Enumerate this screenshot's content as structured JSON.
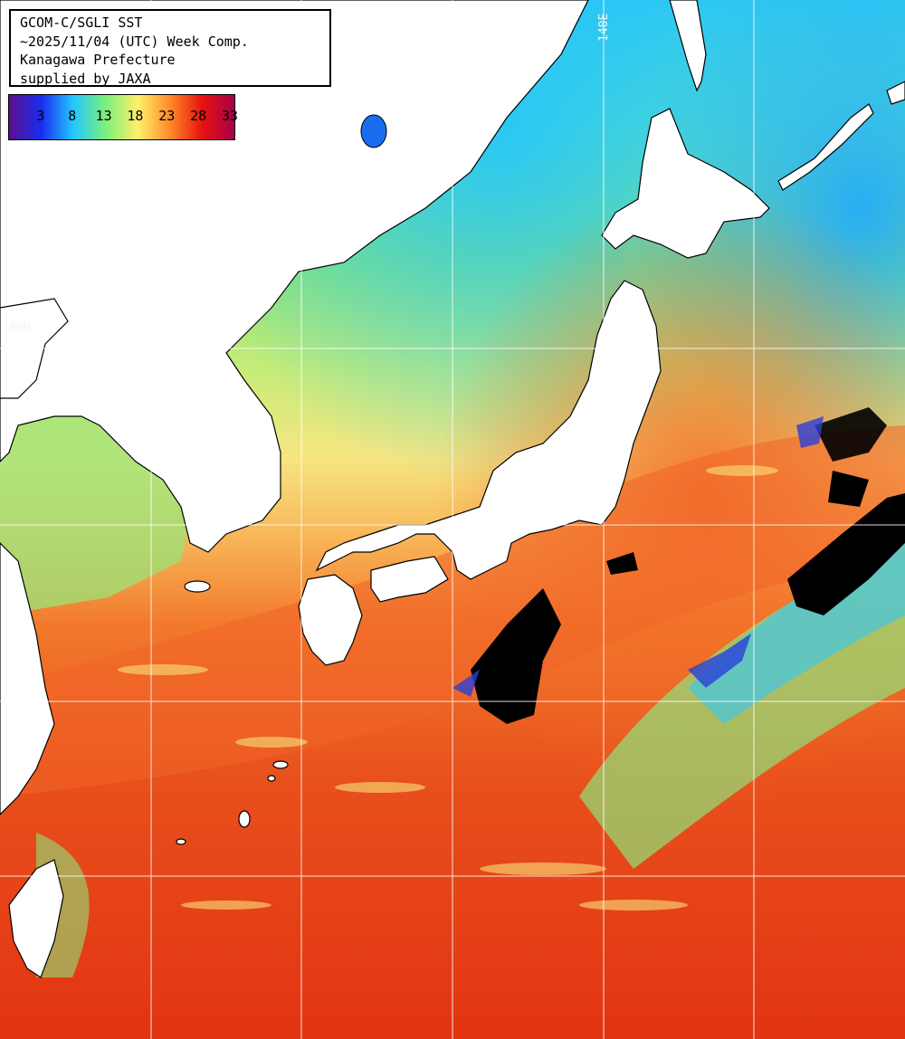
{
  "info": {
    "line1": "GCOM-C/SGLI SST",
    "line2": "~2025/11/04 (UTC) Week Comp.",
    "line3": "Kanagawa Prefecture",
    "line4": "supplied by JAXA"
  },
  "legend": {
    "ticks": [
      "3",
      "8",
      "13",
      "18",
      "23",
      "28",
      "33"
    ],
    "colors": [
      "#5a0f8c",
      "#1a2cf0",
      "#22c8ff",
      "#7cf07a",
      "#fff06a",
      "#ff8a2a",
      "#e6120e",
      "#a80048"
    ]
  },
  "graticule": {
    "lon_label": "140E",
    "lat_label": "40N"
  },
  "palette": {
    "land": "#ffffff",
    "cloud": "#000000",
    "grid": "#ffffff",
    "warm": "#e23a14",
    "orange": "#f07a2a",
    "yellow": "#f8e880",
    "green": "#8ce67a",
    "cyan": "#30d0f0",
    "blue": "#1a5cf0"
  }
}
